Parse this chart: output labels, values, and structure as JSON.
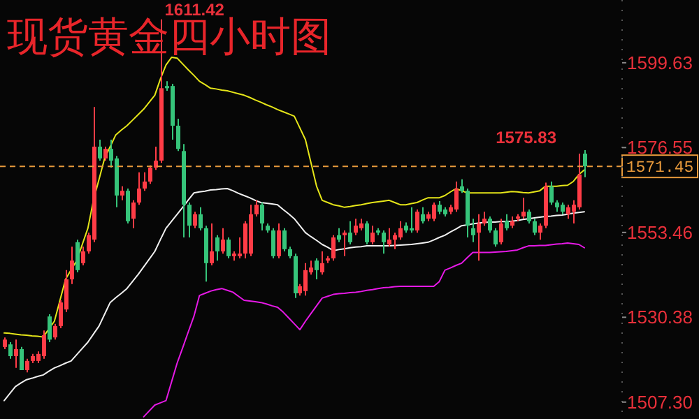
{
  "chart_data": {
    "type": "candlestick",
    "title": "现货黄金四小时图",
    "categories": [
      null,
      null,
      null,
      null,
      null,
      null,
      null,
      null,
      null,
      null,
      null,
      null,
      null,
      null,
      null,
      null,
      null,
      null,
      null,
      null,
      null,
      null,
      null,
      null,
      null,
      null,
      null,
      null,
      null,
      null,
      null,
      null,
      null,
      null,
      null,
      null,
      null,
      null,
      null,
      null,
      null,
      null,
      null,
      null,
      null,
      null,
      null,
      null,
      null,
      null,
      null,
      null,
      null,
      null,
      null,
      null,
      null,
      null,
      null,
      null,
      null,
      null,
      null,
      null,
      null,
      null,
      null,
      null,
      null,
      null,
      null,
      null,
      null,
      null,
      null,
      null,
      null,
      null,
      null,
      null,
      null,
      null,
      null,
      null,
      null,
      null,
      null,
      null,
      null,
      null,
      null,
      null,
      null,
      null,
      null,
      null,
      null,
      null,
      null,
      null,
      null,
      null,
      null,
      null,
      null
    ],
    "ohlc": [
      [
        1522.3,
        1524.9,
        1521.7,
        1524.3
      ],
      [
        1523.0,
        1523.6,
        1519.1,
        1519.8
      ],
      [
        1519.8,
        1524.3,
        1516.6,
        1521.7
      ],
      [
        1521.7,
        1522.3,
        1516.0,
        1516.0
      ],
      [
        1516.0,
        1519.1,
        1515.4,
        1518.5
      ],
      [
        1518.5,
        1520.4,
        1517.9,
        1519.8
      ],
      [
        1518.5,
        1521.1,
        1517.9,
        1520.4
      ],
      [
        1519.8,
        1526.8,
        1519.1,
        1525.5
      ],
      [
        1530.6,
        1531.2,
        1523.6,
        1524.3
      ],
      [
        1524.9,
        1528.6,
        1524.3,
        1528.0
      ],
      [
        1528.0,
        1535.0,
        1527.4,
        1534.4
      ],
      [
        1532.5,
        1543.2,
        1531.8,
        1540.7
      ],
      [
        1540.7,
        1549.6,
        1539.4,
        1545.8
      ],
      [
        1550.8,
        1551.5,
        1542.6,
        1543.2
      ],
      [
        1545.1,
        1549.6,
        1544.5,
        1548.3
      ],
      [
        1548.3,
        1553.4,
        1547.7,
        1552.7
      ],
      [
        1551.5,
        1587.6,
        1550.8,
        1576.8
      ],
      [
        1576.8,
        1578.7,
        1573.0,
        1573.6
      ],
      [
        1573.6,
        1576.8,
        1573.0,
        1576.2
      ],
      [
        1576.2,
        1578.7,
        1571.1,
        1573.0
      ],
      [
        1573.6,
        1574.3,
        1560.3,
        1563.5
      ],
      [
        1563.5,
        1566.0,
        1562.2,
        1564.8
      ],
      [
        1564.8,
        1565.4,
        1555.9,
        1556.5
      ],
      [
        1557.2,
        1562.2,
        1554.6,
        1561.6
      ],
      [
        1561.6,
        1569.8,
        1561.0,
        1565.4
      ],
      [
        1565.4,
        1569.8,
        1564.8,
        1567.3
      ],
      [
        1567.3,
        1571.7,
        1566.7,
        1571.1
      ],
      [
        1571.1,
        1576.8,
        1570.5,
        1573.0
      ],
      [
        1573.0,
        1611.42,
        1572.4,
        1592.7
      ],
      [
        1593.3,
        1594.6,
        1592.0,
        1592.7
      ],
      [
        1593.3,
        1593.9,
        1578.7,
        1582.5
      ],
      [
        1582.5,
        1584.4,
        1575.6,
        1576.2
      ],
      [
        1575.6,
        1577.5,
        1552.1,
        1561.0
      ],
      [
        1561.0,
        1561.6,
        1552.1,
        1555.3
      ],
      [
        1555.3,
        1559.1,
        1554.6,
        1558.4
      ],
      [
        1558.4,
        1560.3,
        1554.0,
        1554.6
      ],
      [
        1554.6,
        1555.3,
        1540.1,
        1545.1
      ],
      [
        1545.1,
        1555.9,
        1544.5,
        1548.3
      ],
      [
        1552.1,
        1552.7,
        1545.8,
        1548.3
      ],
      [
        1548.3,
        1554.6,
        1547.7,
        1551.5
      ],
      [
        1551.5,
        1552.1,
        1546.4,
        1547.0
      ],
      [
        1547.0,
        1548.3,
        1545.8,
        1547.7
      ],
      [
        1547.0,
        1552.1,
        1546.4,
        1547.7
      ],
      [
        1547.7,
        1556.5,
        1546.4,
        1555.9
      ],
      [
        1547.7,
        1561.0,
        1547.0,
        1558.4
      ],
      [
        1558.4,
        1562.2,
        1557.8,
        1561.0
      ],
      [
        1561.0,
        1561.6,
        1554.0,
        1555.9
      ],
      [
        1555.3,
        1555.9,
        1553.4,
        1554.0
      ],
      [
        1554.0,
        1554.6,
        1546.4,
        1547.0
      ],
      [
        1547.0,
        1555.9,
        1546.4,
        1554.0
      ],
      [
        1554.0,
        1554.6,
        1548.3,
        1548.9
      ],
      [
        1548.9,
        1549.6,
        1546.4,
        1547.0
      ],
      [
        1547.0,
        1547.7,
        1535.6,
        1536.9
      ],
      [
        1536.9,
        1539.4,
        1536.3,
        1538.8
      ],
      [
        1537.5,
        1545.1,
        1536.3,
        1543.2
      ],
      [
        1542.6,
        1545.8,
        1542.0,
        1543.9
      ],
      [
        1545.8,
        1546.4,
        1540.7,
        1543.2
      ],
      [
        1542.6,
        1548.3,
        1542.0,
        1545.1
      ],
      [
        1545.8,
        1547.0,
        1545.1,
        1546.4
      ],
      [
        1546.4,
        1552.7,
        1545.8,
        1552.1
      ],
      [
        1552.7,
        1554.6,
        1550.8,
        1551.5
      ],
      [
        1552.7,
        1554.0,
        1547.0,
        1553.4
      ],
      [
        1553.4,
        1556.5,
        1550.2,
        1550.8
      ],
      [
        1553.4,
        1557.2,
        1552.7,
        1555.3
      ],
      [
        1554.6,
        1557.2,
        1554.0,
        1555.9
      ],
      [
        1555.9,
        1556.5,
        1550.2,
        1550.8
      ],
      [
        1550.8,
        1555.3,
        1550.2,
        1553.4
      ],
      [
        1554.0,
        1554.6,
        1552.7,
        1553.4
      ],
      [
        1553.4,
        1554.0,
        1547.7,
        1550.8
      ],
      [
        1550.2,
        1554.6,
        1549.6,
        1551.5
      ],
      [
        1551.5,
        1553.4,
        1548.9,
        1552.7
      ],
      [
        1552.1,
        1556.5,
        1551.5,
        1554.6
      ],
      [
        1555.3,
        1556.2,
        1553.4,
        1554.0
      ],
      [
        1554.6,
        1560.3,
        1553.4,
        1554.0
      ],
      [
        1554.0,
        1559.7,
        1553.4,
        1559.1
      ],
      [
        1558.4,
        1560.3,
        1555.9,
        1556.5
      ],
      [
        1557.2,
        1559.1,
        1556.5,
        1558.4
      ],
      [
        1557.2,
        1561.6,
        1556.5,
        1561.0
      ],
      [
        1561.0,
        1562.0,
        1558.4,
        1559.1
      ],
      [
        1559.7,
        1560.3,
        1557.8,
        1558.4
      ],
      [
        1559.1,
        1561.0,
        1558.4,
        1560.3
      ],
      [
        1559.7,
        1567.3,
        1559.1,
        1565.4
      ],
      [
        1566.0,
        1567.9,
        1564.2,
        1564.8
      ],
      [
        1564.8,
        1565.4,
        1552.1,
        1555.3
      ],
      [
        1554.6,
        1557.2,
        1550.8,
        1552.7
      ],
      [
        1553.4,
        1558.4,
        1545.8,
        1555.9
      ],
      [
        1555.9,
        1559.1,
        1555.3,
        1557.2
      ],
      [
        1557.2,
        1557.8,
        1553.4,
        1554.0
      ],
      [
        1554.0,
        1554.6,
        1549.6,
        1550.2
      ],
      [
        1550.8,
        1557.2,
        1550.2,
        1555.9
      ],
      [
        1556.5,
        1558.4,
        1554.0,
        1554.6
      ],
      [
        1555.3,
        1557.8,
        1554.6,
        1556.5
      ],
      [
        1557.2,
        1558.4,
        1556.5,
        1557.8
      ],
      [
        1557.8,
        1562.9,
        1557.2,
        1559.1
      ],
      [
        1559.1,
        1559.7,
        1555.9,
        1556.5
      ],
      [
        1556.5,
        1557.2,
        1552.7,
        1553.4
      ],
      [
        1553.4,
        1555.9,
        1551.5,
        1555.3
      ],
      [
        1555.3,
        1567.0,
        1554.6,
        1566.0
      ],
      [
        1566.0,
        1567.3,
        1561.0,
        1561.6
      ],
      [
        1561.6,
        1562.2,
        1559.1,
        1560.3
      ],
      [
        1561.0,
        1561.6,
        1558.4,
        1559.1
      ],
      [
        1558.4,
        1561.0,
        1557.2,
        1560.3
      ],
      [
        1559.1,
        1562.2,
        1555.9,
        1561.0
      ],
      [
        1560.3,
        1574.9,
        1559.7,
        1569.2
      ],
      [
        1574.9,
        1575.83,
        1568.5,
        1571.45
      ]
    ],
    "series": [
      {
        "type": "line",
        "color": "#e6e619",
        "values": [
          1526.1,
          1526.0,
          1525.8,
          1525.6,
          1525.5,
          1525.3,
          1525.2,
          1525.0,
          1527.2,
          1529.3,
          1535.0,
          1540.7,
          1543.3,
          1545.8,
          1550.2,
          1554.6,
          1562.2,
          1567.9,
          1573.6,
          1576.8,
          1580.0,
          1581.3,
          1582.5,
          1584.0,
          1585.5,
          1587.0,
          1588.9,
          1590.8,
          1595.2,
          1599.0,
          1601.1,
          1600.9,
          1599.3,
          1597.7,
          1596.2,
          1594.6,
          1593.7,
          1592.7,
          1592.5,
          1592.2,
          1592.0,
          1591.6,
          1591.2,
          1590.8,
          1590.2,
          1589.5,
          1588.9,
          1588.2,
          1587.6,
          1586.9,
          1586.3,
          1585.7,
          1585.1,
          1581.9,
          1578.7,
          1572.4,
          1566.0,
          1562.2,
          1561.6,
          1561.0,
          1560.7,
          1560.3,
          1560.5,
          1560.8,
          1561.0,
          1561.3,
          1561.6,
          1561.8,
          1562.0,
          1562.2,
          1561.6,
          1561.0,
          1561.0,
          1561.3,
          1561.6,
          1562.3,
          1562.9,
          1562.9,
          1562.9,
          1563.5,
          1564.5,
          1565.4,
          1564.8,
          1564.2,
          1564.2,
          1564.2,
          1564.2,
          1564.2,
          1564.2,
          1564.2,
          1564.4,
          1564.6,
          1564.5,
          1564.3,
          1564.2,
          1564.5,
          1564.8,
          1566.0,
          1566.0,
          1566.0,
          1566.2,
          1566.3,
          1567.3,
          1569.2,
          1570.5
        ]
      },
      {
        "type": "line",
        "color": "#f0f0f0",
        "values": [
          1507.7,
          1509.6,
          1511.5,
          1512.5,
          1513.4,
          1513.8,
          1514.3,
          1514.7,
          1515.7,
          1516.6,
          1517.2,
          1517.9,
          1518.5,
          1520.2,
          1521.9,
          1523.6,
          1525.8,
          1528.0,
          1531.2,
          1534.4,
          1535.7,
          1536.9,
          1538.2,
          1540.1,
          1542.0,
          1544.1,
          1546.2,
          1548.3,
          1551.5,
          1554.6,
          1556.5,
          1558.4,
          1560.3,
          1562.3,
          1564.2,
          1564.5,
          1564.7,
          1565.0,
          1565.1,
          1565.3,
          1565.4,
          1564.8,
          1564.1,
          1563.5,
          1562.9,
          1562.2,
          1561.6,
          1561.4,
          1561.2,
          1561.0,
          1559.7,
          1558.5,
          1557.2,
          1555.3,
          1553.4,
          1552.3,
          1551.3,
          1550.2,
          1549.4,
          1548.5,
          1548.8,
          1549.0,
          1549.3,
          1549.5,
          1549.6,
          1549.8,
          1549.8,
          1549.8,
          1549.8,
          1549.8,
          1549.9,
          1550.0,
          1550.1,
          1550.2,
          1550.4,
          1550.6,
          1550.8,
          1551.4,
          1552.1,
          1552.7,
          1553.6,
          1554.4,
          1555.3,
          1555.5,
          1555.8,
          1556.0,
          1556.2,
          1556.3,
          1556.3,
          1556.4,
          1556.4,
          1556.5,
          1556.7,
          1557.0,
          1557.2,
          1557.4,
          1557.6,
          1557.8,
          1557.9,
          1558.1,
          1558.2,
          1558.4,
          1558.7,
          1558.9,
          1559.1
        ]
      },
      {
        "type": "line",
        "color": "#e619e6",
        "values": [
          null,
          null,
          null,
          null,
          null,
          null,
          null,
          null,
          null,
          null,
          null,
          null,
          null,
          null,
          null,
          null,
          null,
          null,
          null,
          null,
          null,
          null,
          null,
          null,
          null,
          1503.3,
          1504.9,
          1506.5,
          1507.1,
          1507.7,
          1512.8,
          1517.9,
          1522.1,
          1526.4,
          1530.6,
          1536.3,
          1536.9,
          1537.5,
          1537.9,
          1538.2,
          1537.7,
          1537.2,
          1536.1,
          1535.0,
          1534.8,
          1534.6,
          1534.4,
          1534.0,
          1533.5,
          1533.1,
          1531.8,
          1530.2,
          1528.6,
          1527.0,
          1529.3,
          1531.4,
          1533.5,
          1535.6,
          1536.1,
          1536.6,
          1536.8,
          1536.9,
          1537.1,
          1537.2,
          1537.4,
          1537.7,
          1537.9,
          1538.2,
          1538.4,
          1538.5,
          1538.7,
          1538.8,
          1538.8,
          1538.8,
          1538.8,
          1538.8,
          1538.8,
          1538.8,
          1540.1,
          1543.2,
          1543.8,
          1544.5,
          1545.1,
          1546.6,
          1548.0,
          1548.0,
          1548.0,
          1548.0,
          1548.1,
          1548.2,
          1548.3,
          1548.5,
          1548.7,
          1549.3,
          1549.8,
          1549.8,
          1549.9,
          1549.9,
          1550.1,
          1550.3,
          1550.4,
          1550.6,
          1550.4,
          1550.2,
          1549.3
        ]
      }
    ],
    "ylim": [
      1502.7,
      1616.7
    ],
    "yticks": [
      1599.63,
      1576.55,
      1553.46,
      1530.38,
      {
        "value": 1507.3,
        "label": "1507.30"
      }
    ],
    "tick_labels": "y",
    "ref_lines": [
      {
        "axis": "y",
        "value": 1571.45,
        "label": "1571.45",
        "color": "#e89a3c",
        "line_style": "dashed"
      }
    ],
    "annotations": [
      "1611.42",
      "1575.83"
    ]
  }
}
